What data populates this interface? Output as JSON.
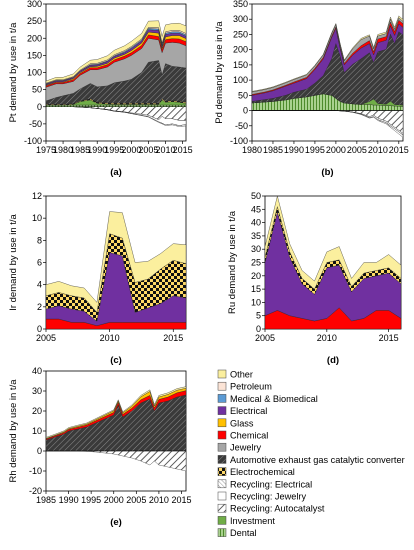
{
  "chart_data": [
    {
      "id": "a",
      "panel_label": "(a)",
      "type": "area",
      "ylabel": "Pt demand by use in t/a",
      "xlim": [
        1975,
        2016
      ],
      "ylim": [
        -100,
        300
      ],
      "xticks": [
        1975,
        1980,
        1985,
        1990,
        1995,
        2000,
        2005,
        2010,
        2015
      ],
      "yticks": [
        -100,
        -50,
        0,
        50,
        100,
        150,
        200,
        250,
        300
      ],
      "x": [
        1975,
        1978,
        1980,
        1983,
        1985,
        1988,
        1990,
        1993,
        1995,
        1998,
        2000,
        2003,
        2005,
        2008,
        2009,
        2010,
        2012,
        2014,
        2016
      ],
      "positive": [
        {
          "name": "Dental",
          "values": [
            5,
            5,
            5,
            5,
            5,
            5,
            5,
            5,
            5,
            5,
            5,
            5,
            5,
            5,
            5,
            5,
            5,
            5,
            5
          ]
        },
        {
          "name": "Investment",
          "values": [
            0,
            0,
            0,
            2,
            10,
            15,
            5,
            3,
            2,
            2,
            2,
            2,
            2,
            2,
            15,
            8,
            10,
            8,
            5
          ]
        },
        {
          "name": "Electrochemical",
          "values": [
            2,
            2,
            2,
            2,
            2,
            3,
            3,
            3,
            3,
            3,
            3,
            3,
            3,
            3,
            3,
            3,
            3,
            3,
            3
          ]
        },
        {
          "name": "Automotive exhaust gas catalytic converter",
          "values": [
            10,
            20,
            25,
            30,
            35,
            45,
            45,
            50,
            60,
            65,
            70,
            90,
            120,
            125,
            70,
            110,
            100,
            100,
            100
          ]
        },
        {
          "name": "Jewelry",
          "values": [
            40,
            40,
            35,
            35,
            40,
            40,
            50,
            55,
            60,
            65,
            70,
            70,
            70,
            60,
            65,
            60,
            70,
            70,
            65
          ]
        },
        {
          "name": "Chemical",
          "values": [
            4,
            4,
            4,
            5,
            5,
            6,
            6,
            7,
            7,
            8,
            8,
            9,
            10,
            10,
            9,
            10,
            11,
            12,
            12
          ]
        },
        {
          "name": "Glass",
          "values": [
            2,
            2,
            2,
            3,
            3,
            3,
            4,
            4,
            5,
            5,
            6,
            7,
            8,
            10,
            5,
            8,
            9,
            10,
            9
          ]
        },
        {
          "name": "Electrical",
          "values": [
            3,
            3,
            3,
            3,
            4,
            4,
            4,
            5,
            5,
            5,
            6,
            6,
            7,
            8,
            6,
            7,
            7,
            7,
            7
          ]
        },
        {
          "name": "Medical & Biomedical",
          "values": [
            1,
            1,
            1,
            1,
            1,
            2,
            2,
            2,
            2,
            3,
            3,
            3,
            4,
            4,
            4,
            4,
            4,
            4,
            4
          ]
        },
        {
          "name": "Petroleum",
          "values": [
            2,
            2,
            2,
            2,
            2,
            3,
            3,
            3,
            3,
            3,
            3,
            3,
            3,
            4,
            4,
            4,
            4,
            4,
            4
          ]
        },
        {
          "name": "Other",
          "values": [
            6,
            7,
            7,
            8,
            9,
            10,
            11,
            12,
            13,
            14,
            15,
            16,
            18,
            20,
            19,
            20,
            20,
            21,
            22
          ]
        }
      ],
      "negative": [
        {
          "name": "Recycling: Autocatalyst",
          "values": [
            0,
            0,
            0,
            0,
            -1,
            -3,
            -5,
            -8,
            -12,
            -15,
            -18,
            -22,
            -25,
            -38,
            -28,
            -35,
            -35,
            -40,
            -40
          ]
        },
        {
          "name": "Recycling: Jewelry",
          "values": [
            0,
            0,
            0,
            0,
            0,
            0,
            0,
            -1,
            -1,
            -1,
            -2,
            -3,
            -4,
            -6,
            -20,
            -18,
            -15,
            -15,
            -12
          ]
        },
        {
          "name": "Recycling: Electrical",
          "values": [
            0,
            0,
            0,
            0,
            0,
            0,
            0,
            0,
            0,
            0,
            0,
            -1,
            -1,
            -2,
            -2,
            -2,
            -3,
            -3,
            -4
          ]
        }
      ]
    },
    {
      "id": "b",
      "panel_label": "(b)",
      "type": "area",
      "ylabel": "Pd demand by use in t/a",
      "xlim": [
        1980,
        2016
      ],
      "ylim": [
        -100,
        350
      ],
      "xticks": [
        1980,
        1985,
        1990,
        1995,
        2000,
        2005,
        2010,
        2015
      ],
      "yticks": [
        -100,
        -50,
        0,
        50,
        100,
        150,
        200,
        250,
        300,
        350
      ],
      "x": [
        1980,
        1983,
        1985,
        1988,
        1990,
        1993,
        1995,
        1997,
        1999,
        2000,
        2001,
        2002,
        2004,
        2006,
        2008,
        2009,
        2010,
        2012,
        2013,
        2014,
        2015,
        2016
      ],
      "positive": [
        {
          "name": "Dental",
          "values": [
            25,
            28,
            30,
            35,
            40,
            45,
            50,
            55,
            50,
            40,
            30,
            25,
            22,
            20,
            20,
            18,
            18,
            16,
            16,
            15,
            14,
            13
          ]
        },
        {
          "name": "Investment",
          "values": [
            0,
            0,
            0,
            0,
            0,
            0,
            0,
            0,
            0,
            0,
            0,
            0,
            0,
            0,
            10,
            20,
            5,
            5,
            15,
            5,
            5,
            5
          ]
        },
        {
          "name": "Automotive exhaust gas catalytic converter",
          "values": [
            5,
            8,
            10,
            15,
            20,
            25,
            40,
            60,
            120,
            180,
            150,
            100,
            130,
            150,
            160,
            120,
            170,
            180,
            220,
            200,
            240,
            230
          ]
        },
        {
          "name": "Electrical",
          "values": [
            20,
            22,
            25,
            30,
            30,
            35,
            45,
            55,
            70,
            50,
            25,
            25,
            30,
            35,
            30,
            25,
            30,
            30,
            28,
            27,
            26,
            25
          ]
        },
        {
          "name": "Chemical",
          "values": [
            3,
            3,
            3,
            3,
            4,
            4,
            4,
            5,
            5,
            5,
            5,
            5,
            6,
            8,
            10,
            10,
            12,
            12,
            12,
            12,
            12,
            12
          ]
        },
        {
          "name": "Jewelry",
          "values": [
            8,
            8,
            8,
            8,
            8,
            8,
            8,
            8,
            8,
            8,
            8,
            8,
            15,
            20,
            15,
            10,
            10,
            10,
            10,
            8,
            8,
            8
          ]
        },
        {
          "name": "Other",
          "values": [
            2,
            2,
            2,
            2,
            2,
            2,
            2,
            2,
            3,
            3,
            3,
            3,
            3,
            4,
            4,
            4,
            5,
            5,
            6,
            6,
            6,
            6
          ]
        }
      ],
      "negative": [
        {
          "name": "Recycling: Autocatalyst",
          "values": [
            0,
            0,
            0,
            0,
            0,
            0,
            0,
            0,
            0,
            0,
            -1,
            -2,
            -5,
            -10,
            -20,
            -15,
            -25,
            -35,
            -45,
            -55,
            -65,
            -75
          ]
        },
        {
          "name": "Recycling: Jewelry",
          "values": [
            0,
            0,
            0,
            0,
            0,
            0,
            0,
            0,
            0,
            0,
            0,
            0,
            0,
            -2,
            -3,
            -5,
            -5,
            -5,
            -5,
            -5,
            -5,
            -5
          ]
        },
        {
          "name": "Recycling: Electrical",
          "values": [
            0,
            0,
            0,
            0,
            0,
            0,
            0,
            0,
            0,
            0,
            0,
            0,
            -1,
            -1,
            -2,
            -2,
            -3,
            -4,
            -5,
            -6,
            -7,
            -8
          ]
        }
      ]
    },
    {
      "id": "c",
      "panel_label": "(c)",
      "type": "area",
      "ylabel": "Ir  demand by use in t/a",
      "xlim": [
        2005,
        2016
      ],
      "ylim": [
        0,
        12
      ],
      "xticks": [
        2005,
        2010,
        2015
      ],
      "yticks": [
        0,
        2,
        4,
        6,
        8,
        10,
        12
      ],
      "x": [
        2005,
        2006,
        2007,
        2008,
        2009,
        2010,
        2011,
        2012,
        2013,
        2014,
        2015,
        2016
      ],
      "positive": [
        {
          "name": "Chemical",
          "values": [
            0.9,
            0.9,
            0.6,
            0.6,
            0.3,
            0.6,
            0.6,
            0.6,
            0.6,
            0.6,
            0.6,
            0.6
          ]
        },
        {
          "name": "Electrical",
          "values": [
            0.9,
            1.2,
            1.2,
            1.0,
            0.4,
            6.3,
            6.0,
            0.9,
            1.3,
            1.7,
            2.4,
            2.2
          ]
        },
        {
          "name": "Electrochemical",
          "values": [
            1.2,
            1.2,
            1.2,
            1.2,
            0.8,
            1.7,
            1.6,
            2.7,
            2.6,
            3.1,
            3.2,
            3.1
          ]
        },
        {
          "name": "Other",
          "values": [
            1.0,
            1.0,
            0.9,
            0.9,
            0.9,
            2.0,
            2.3,
            1.8,
            1.6,
            1.4,
            1.5,
            1.7
          ]
        }
      ],
      "negative": []
    },
    {
      "id": "d",
      "panel_label": "(d)",
      "type": "area",
      "ylabel": "Ru demand by use in t/a",
      "xlim": [
        2005,
        2016
      ],
      "ylim": [
        0,
        50
      ],
      "xticks": [
        2005,
        2010,
        2015
      ],
      "yticks": [
        0,
        5,
        10,
        15,
        20,
        25,
        30,
        35,
        40,
        45,
        50
      ],
      "x": [
        2005,
        2006,
        2007,
        2008,
        2009,
        2010,
        2011,
        2012,
        2013,
        2014,
        2015,
        2016
      ],
      "positive": [
        {
          "name": "Chemical",
          "values": [
            5,
            7,
            5,
            4,
            3,
            4,
            8,
            3,
            4,
            7,
            7,
            4
          ]
        },
        {
          "name": "Electrical",
          "values": [
            20,
            37,
            22,
            13,
            10,
            19,
            16,
            11,
            15,
            13,
            14,
            13
          ]
        },
        {
          "name": "Electrochemical",
          "values": [
            2,
            2,
            2,
            2,
            2,
            2,
            2,
            2,
            2,
            2,
            2,
            2
          ]
        },
        {
          "name": "Other",
          "values": [
            4,
            4,
            3,
            3,
            3,
            4,
            5,
            3,
            4,
            3,
            5,
            5
          ]
        }
      ],
      "negative": []
    },
    {
      "id": "e",
      "panel_label": "(e)",
      "type": "area",
      "ylabel": "Rh demand by use in t/a",
      "xlim": [
        1985,
        2016
      ],
      "ylim": [
        -20,
        40
      ],
      "xticks": [
        1985,
        1990,
        1995,
        2000,
        2005,
        2010,
        2015
      ],
      "yticks": [
        -20,
        -10,
        0,
        10,
        20,
        30,
        40
      ],
      "x": [
        1985,
        1987,
        1989,
        1990,
        1992,
        1994,
        1996,
        1998,
        2000,
        2001,
        2002,
        2004,
        2006,
        2008,
        2009,
        2010,
        2012,
        2014,
        2016
      ],
      "positive": [
        {
          "name": "Automotive exhaust gas catalytic converter",
          "values": [
            5.5,
            7,
            8.5,
            10,
            11,
            12,
            14,
            16,
            18,
            23,
            17,
            20,
            24,
            26,
            20,
            24,
            25,
            27,
            28
          ]
        },
        {
          "name": "Chemical",
          "values": [
            0.5,
            0.6,
            0.7,
            0.8,
            0.9,
            1.0,
            1.1,
            1.2,
            1.3,
            1.3,
            1.3,
            1.4,
            1.6,
            1.8,
            1.5,
            1.8,
            2.0,
            2.1,
            2.2
          ]
        },
        {
          "name": "Glass",
          "values": [
            0.3,
            0.3,
            0.4,
            0.4,
            0.5,
            0.5,
            0.6,
            0.7,
            0.8,
            0.8,
            0.8,
            1.0,
            1.5,
            2.0,
            1.0,
            1.2,
            1.3,
            1.3,
            1.2
          ]
        },
        {
          "name": "Other",
          "values": [
            0.5,
            0.5,
            0.5,
            0.5,
            0.5,
            0.5,
            0.5,
            0.5,
            0.5,
            0.5,
            0.5,
            0.6,
            0.7,
            0.8,
            0.7,
            0.8,
            0.8,
            0.8,
            0.8
          ]
        }
      ],
      "negative": [
        {
          "name": "Recycling: Autocatalyst",
          "values": [
            0,
            0,
            0,
            0,
            0,
            -0.2,
            -0.5,
            -1,
            -1.5,
            -2,
            -2.5,
            -3.5,
            -5,
            -7,
            -5,
            -7,
            -8,
            -9,
            -10
          ]
        }
      ]
    }
  ],
  "legend": {
    "entries": [
      {
        "name": "Other",
        "color": "#fbef9e",
        "pattern": "solid"
      },
      {
        "name": "Petroleum",
        "color": "#fce4d6",
        "pattern": "solid"
      },
      {
        "name": "Medical & Biomedical",
        "color": "#5b9bd5",
        "pattern": "solid"
      },
      {
        "name": "Electrical",
        "color": "#7030a0",
        "pattern": "solid"
      },
      {
        "name": "Glass",
        "color": "#ffc000",
        "pattern": "solid"
      },
      {
        "name": "Chemical",
        "color": "#ff0000",
        "pattern": "solid"
      },
      {
        "name": "Jewelry",
        "color": "#a6a6a6",
        "pattern": "solid"
      },
      {
        "name": "Automotive exhaust gas catalytic converter",
        "color": "#404040",
        "pattern": "hatch-dark"
      },
      {
        "name": "Electrochemical",
        "color": "#ffd966",
        "pattern": "checker"
      },
      {
        "name": "Recycling: Electrical",
        "color": "#ffffff",
        "pattern": "hatch-fine"
      },
      {
        "name": "Recycling: Jewelry",
        "color": "#ffffff",
        "pattern": "solid"
      },
      {
        "name": "Recycling: Autocatalyst",
        "color": "#ffffff",
        "pattern": "hatch-wide"
      },
      {
        "name": "Investment",
        "color": "#70ad47",
        "pattern": "solid"
      },
      {
        "name": "Dental",
        "color": "#a9d18e",
        "pattern": "stripe"
      }
    ]
  }
}
